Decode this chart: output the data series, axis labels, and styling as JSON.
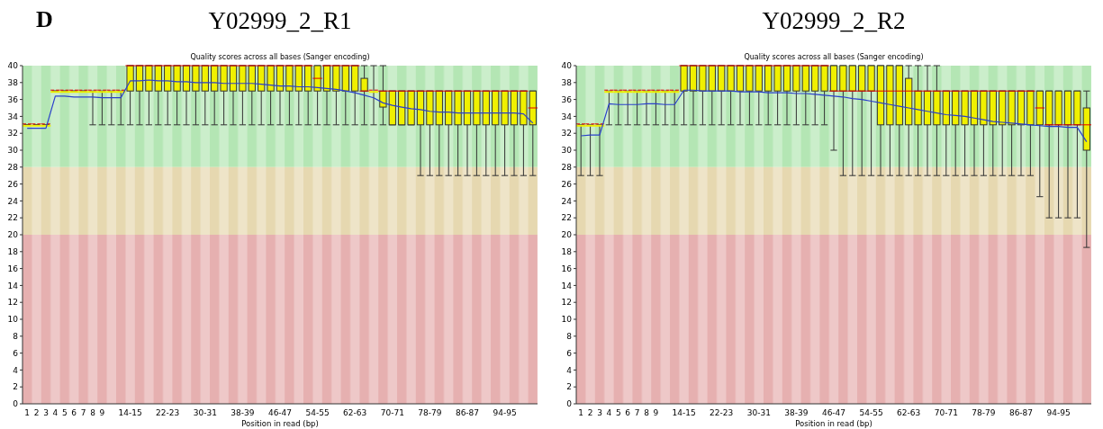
{
  "chart_data": [
    {
      "type": "box",
      "title": "Y02999_2_R1",
      "subtitle": "Quality scores across all bases (Sanger encoding)",
      "xlabel": "Position in read (bp)",
      "annotations": [
        "D"
      ],
      "categories": [
        "1",
        "2",
        "3",
        "4",
        "5",
        "6",
        "7",
        "8",
        "9",
        null,
        null,
        "14-15",
        null,
        null,
        null,
        "22-23",
        null,
        null,
        null,
        "30-31",
        null,
        null,
        null,
        "38-39",
        null,
        null,
        null,
        "46-47",
        null,
        null,
        null,
        "54-55",
        null,
        null,
        null,
        "62-63",
        null,
        null,
        null,
        "70-71",
        null,
        null,
        null,
        "78-79",
        null,
        null,
        null,
        "86-87",
        null,
        null,
        null,
        "94-95",
        null,
        null,
        null
      ],
      "ylim": [
        0,
        40
      ],
      "yticks": [
        0,
        2,
        4,
        6,
        8,
        10,
        12,
        14,
        16,
        18,
        20,
        22,
        24,
        26,
        28,
        30,
        32,
        34,
        36,
        38,
        40
      ],
      "bands": [
        {
          "axis": "y",
          "from": 28,
          "to": 40,
          "color": "#b4e6b4"
        },
        {
          "axis": "y",
          "from": 20,
          "to": 28,
          "color": "#e6d8b0"
        },
        {
          "axis": "y",
          "from": 0,
          "to": 20,
          "color": "#e6b0b0"
        }
      ],
      "series": [
        {
          "type": "box",
          "color": "#f0f000",
          "boxes": [
            {
              "low": 33,
              "q1": 33,
              "median": 33,
              "q3": 33,
              "high": 33
            },
            {
              "low": 33,
              "q1": 33,
              "median": 33,
              "q3": 33,
              "high": 33
            },
            {
              "low": 33,
              "q1": 33,
              "median": 33,
              "q3": 33,
              "high": 33
            },
            {
              "low": 37,
              "q1": 37,
              "median": 37,
              "q3": 37,
              "high": 37
            },
            {
              "low": 37,
              "q1": 37,
              "median": 37,
              "q3": 37,
              "high": 37
            },
            {
              "low": 37,
              "q1": 37,
              "median": 37,
              "q3": 37,
              "high": 37
            },
            {
              "low": 37,
              "q1": 37,
              "median": 37,
              "q3": 37,
              "high": 37
            },
            {
              "low": 33,
              "q1": 37,
              "median": 37,
              "q3": 37,
              "high": 37
            },
            {
              "low": 33,
              "q1": 37,
              "median": 37,
              "q3": 37,
              "high": 37
            },
            {
              "low": 33,
              "q1": 37,
              "median": 37,
              "q3": 37,
              "high": 37
            },
            {
              "low": 33,
              "q1": 37,
              "median": 37,
              "q3": 37,
              "high": 37
            },
            {
              "low": 33,
              "q1": 37,
              "median": 40,
              "q3": 40,
              "high": 40
            },
            {
              "low": 33,
              "q1": 37,
              "median": 40,
              "q3": 40,
              "high": 40
            },
            {
              "low": 33,
              "q1": 37,
              "median": 40,
              "q3": 40,
              "high": 40
            },
            {
              "low": 33,
              "q1": 37,
              "median": 40,
              "q3": 40,
              "high": 40
            },
            {
              "low": 33,
              "q1": 37,
              "median": 40,
              "q3": 40,
              "high": 40
            },
            {
              "low": 33,
              "q1": 37,
              "median": 40,
              "q3": 40,
              "high": 40
            },
            {
              "low": 33,
              "q1": 37,
              "median": 40,
              "q3": 40,
              "high": 40
            },
            {
              "low": 33,
              "q1": 37,
              "median": 40,
              "q3": 40,
              "high": 40
            },
            {
              "low": 33,
              "q1": 37,
              "median": 40,
              "q3": 40,
              "high": 40
            },
            {
              "low": 33,
              "q1": 37,
              "median": 40,
              "q3": 40,
              "high": 40
            },
            {
              "low": 33,
              "q1": 37,
              "median": 40,
              "q3": 40,
              "high": 40
            },
            {
              "low": 33,
              "q1": 37,
              "median": 40,
              "q3": 40,
              "high": 40
            },
            {
              "low": 33,
              "q1": 37,
              "median": 40,
              "q3": 40,
              "high": 40
            },
            {
              "low": 33,
              "q1": 37,
              "median": 40,
              "q3": 40,
              "high": 40
            },
            {
              "low": 33,
              "q1": 37,
              "median": 40,
              "q3": 40,
              "high": 40
            },
            {
              "low": 33,
              "q1": 37,
              "median": 40,
              "q3": 40,
              "high": 40
            },
            {
              "low": 33,
              "q1": 37,
              "median": 40,
              "q3": 40,
              "high": 40
            },
            {
              "low": 33,
              "q1": 37,
              "median": 40,
              "q3": 40,
              "high": 40
            },
            {
              "low": 33,
              "q1": 37,
              "median": 40,
              "q3": 40,
              "high": 40
            },
            {
              "low": 33,
              "q1": 37,
              "median": 40,
              "q3": 40,
              "high": 40
            },
            {
              "low": 33,
              "q1": 37,
              "median": 38.5,
              "q3": 40,
              "high": 40
            },
            {
              "low": 33,
              "q1": 37,
              "median": 40,
              "q3": 40,
              "high": 40
            },
            {
              "low": 33,
              "q1": 37,
              "median": 40,
              "q3": 40,
              "high": 40
            },
            {
              "low": 33,
              "q1": 37,
              "median": 40,
              "q3": 40,
              "high": 40
            },
            {
              "low": 33,
              "q1": 37,
              "median": 40,
              "q3": 40,
              "high": 40
            },
            {
              "low": 33,
              "q1": 37,
              "median": 37,
              "q3": 38.5,
              "high": 40
            },
            {
              "low": 33,
              "q1": 37,
              "median": 37,
              "q3": 37,
              "high": 40
            },
            {
              "low": 33,
              "q1": 35.1,
              "median": 37,
              "q3": 37,
              "high": 40
            },
            {
              "low": 33,
              "q1": 33,
              "median": 37,
              "q3": 37,
              "high": 37
            },
            {
              "low": 33,
              "q1": 33,
              "median": 37,
              "q3": 37,
              "high": 37
            },
            {
              "low": 33,
              "q1": 33,
              "median": 37,
              "q3": 37,
              "high": 37
            },
            {
              "low": 27,
              "q1": 33,
              "median": 37,
              "q3": 37,
              "high": 37
            },
            {
              "low": 27,
              "q1": 33,
              "median": 37,
              "q3": 37,
              "high": 37
            },
            {
              "low": 27,
              "q1": 33,
              "median": 37,
              "q3": 37,
              "high": 37
            },
            {
              "low": 27,
              "q1": 33,
              "median": 37,
              "q3": 37,
              "high": 37
            },
            {
              "low": 27,
              "q1": 33,
              "median": 37,
              "q3": 37,
              "high": 37
            },
            {
              "low": 27,
              "q1": 33,
              "median": 37,
              "q3": 37,
              "high": 37
            },
            {
              "low": 27,
              "q1": 33,
              "median": 37,
              "q3": 37,
              "high": 37
            },
            {
              "low": 27,
              "q1": 33,
              "median": 37,
              "q3": 37,
              "high": 37
            },
            {
              "low": 27,
              "q1": 33,
              "median": 37,
              "q3": 37,
              "high": 37
            },
            {
              "low": 27,
              "q1": 33,
              "median": 37,
              "q3": 37,
              "high": 37
            },
            {
              "low": 27,
              "q1": 33,
              "median": 37,
              "q3": 37,
              "high": 37
            },
            {
              "low": 27,
              "q1": 33,
              "median": 37,
              "q3": 37,
              "high": 37
            },
            {
              "low": 27,
              "q1": 33,
              "median": 35,
              "q3": 37,
              "high": 37
            }
          ]
        },
        {
          "type": "line",
          "color": "#2a3fcc",
          "values": [
            32.6,
            32.6,
            32.6,
            36.4,
            36.4,
            36.3,
            36.3,
            36.3,
            36.2,
            36.2,
            36.2,
            38.2,
            38.2,
            38.3,
            38.2,
            38.2,
            38.1,
            38.1,
            38.0,
            38.0,
            38.0,
            37.9,
            37.9,
            37.9,
            37.9,
            37.8,
            37.7,
            37.6,
            37.6,
            37.5,
            37.5,
            37.4,
            37.3,
            37.2,
            37.0,
            36.8,
            36.5,
            36.2,
            35.6,
            35.3,
            35.1,
            34.9,
            34.8,
            34.6,
            34.5,
            34.5,
            34.4,
            34.4,
            34.4,
            34.4,
            34.4,
            34.4,
            34.4,
            34.3,
            33.2
          ]
        }
      ]
    },
    {
      "type": "box",
      "title": "Y02999_2_R2",
      "subtitle": "Quality scores across all bases (Sanger encoding)",
      "xlabel": "Position in read (bp)",
      "categories": [
        "1",
        "2",
        "3",
        "4",
        "5",
        "6",
        "7",
        "8",
        "9",
        null,
        null,
        "14-15",
        null,
        null,
        null,
        "22-23",
        null,
        null,
        null,
        "30-31",
        null,
        null,
        null,
        "38-39",
        null,
        null,
        null,
        "46-47",
        null,
        null,
        null,
        "54-55",
        null,
        null,
        null,
        "62-63",
        null,
        null,
        null,
        "70-71",
        null,
        null,
        null,
        "78-79",
        null,
        null,
        null,
        "86-87",
        null,
        null,
        null,
        "94-95",
        null,
        null,
        null
      ],
      "ylim": [
        0,
        40
      ],
      "yticks": [
        0,
        2,
        4,
        6,
        8,
        10,
        12,
        14,
        16,
        18,
        20,
        22,
        24,
        26,
        28,
        30,
        32,
        34,
        36,
        38,
        40
      ],
      "bands": [
        {
          "axis": "y",
          "from": 28,
          "to": 40,
          "color": "#b4e6b4"
        },
        {
          "axis": "y",
          "from": 20,
          "to": 28,
          "color": "#e6d8b0"
        },
        {
          "axis": "y",
          "from": 0,
          "to": 20,
          "color": "#e6b0b0"
        }
      ],
      "series": [
        {
          "type": "box",
          "color": "#f0f000",
          "boxes": [
            {
              "low": 27,
              "q1": 33,
              "median": 33,
              "q3": 33,
              "high": 33
            },
            {
              "low": 27,
              "q1": 33,
              "median": 33,
              "q3": 33,
              "high": 33
            },
            {
              "low": 27,
              "q1": 33,
              "median": 33,
              "q3": 33,
              "high": 33
            },
            {
              "low": 33,
              "q1": 37,
              "median": 37,
              "q3": 37,
              "high": 37
            },
            {
              "low": 33,
              "q1": 37,
              "median": 37,
              "q3": 37,
              "high": 37
            },
            {
              "low": 33,
              "q1": 37,
              "median": 37,
              "q3": 37,
              "high": 37
            },
            {
              "low": 33,
              "q1": 37,
              "median": 37,
              "q3": 37,
              "high": 37
            },
            {
              "low": 33,
              "q1": 37,
              "median": 37,
              "q3": 37,
              "high": 37
            },
            {
              "low": 33,
              "q1": 37,
              "median": 37,
              "q3": 37,
              "high": 37
            },
            {
              "low": 33,
              "q1": 37,
              "median": 37,
              "q3": 37,
              "high": 37
            },
            {
              "low": 33,
              "q1": 37,
              "median": 37,
              "q3": 37,
              "high": 37
            },
            {
              "low": 33,
              "q1": 37,
              "median": 40,
              "q3": 40,
              "high": 40
            },
            {
              "low": 33,
              "q1": 37,
              "median": 40,
              "q3": 40,
              "high": 40
            },
            {
              "low": 33,
              "q1": 37,
              "median": 40,
              "q3": 40,
              "high": 40
            },
            {
              "low": 33,
              "q1": 37,
              "median": 40,
              "q3": 40,
              "high": 40
            },
            {
              "low": 33,
              "q1": 37,
              "median": 40,
              "q3": 40,
              "high": 40
            },
            {
              "low": 33,
              "q1": 37,
              "median": 40,
              "q3": 40,
              "high": 40
            },
            {
              "low": 33,
              "q1": 37,
              "median": 40,
              "q3": 40,
              "high": 40
            },
            {
              "low": 33,
              "q1": 37,
              "median": 40,
              "q3": 40,
              "high": 40
            },
            {
              "low": 33,
              "q1": 37,
              "median": 40,
              "q3": 40,
              "high": 40
            },
            {
              "low": 33,
              "q1": 37,
              "median": 40,
              "q3": 40,
              "high": 40
            },
            {
              "low": 33,
              "q1": 37,
              "median": 40,
              "q3": 40,
              "high": 40
            },
            {
              "low": 33,
              "q1": 37,
              "median": 40,
              "q3": 40,
              "high": 40
            },
            {
              "low": 33,
              "q1": 37,
              "median": 40,
              "q3": 40,
              "high": 40
            },
            {
              "low": 33,
              "q1": 37,
              "median": 40,
              "q3": 40,
              "high": 40
            },
            {
              "low": 33,
              "q1": 37,
              "median": 40,
              "q3": 40,
              "high": 40
            },
            {
              "low": 33,
              "q1": 37,
              "median": 40,
              "q3": 40,
              "high": 40
            },
            {
              "low": 30,
              "q1": 37,
              "median": 37,
              "q3": 40,
              "high": 40
            },
            {
              "low": 27,
              "q1": 37,
              "median": 37,
              "q3": 40,
              "high": 40
            },
            {
              "low": 27,
              "q1": 37,
              "median": 37,
              "q3": 40,
              "high": 40
            },
            {
              "low": 27,
              "q1": 37,
              "median": 37,
              "q3": 40,
              "high": 40
            },
            {
              "low": 27,
              "q1": 37,
              "median": 37,
              "q3": 40,
              "high": 40
            },
            {
              "low": 27,
              "q1": 33,
              "median": 37,
              "q3": 40,
              "high": 40
            },
            {
              "low": 27,
              "q1": 33,
              "median": 37,
              "q3": 40,
              "high": 40
            },
            {
              "low": 27,
              "q1": 33,
              "median": 37,
              "q3": 40,
              "high": 40
            },
            {
              "low": 27,
              "q1": 33,
              "median": 37,
              "q3": 38.5,
              "high": 40
            },
            {
              "low": 27,
              "q1": 33,
              "median": 37,
              "q3": 37,
              "high": 40
            },
            {
              "low": 27,
              "q1": 33,
              "median": 37,
              "q3": 37,
              "high": 40
            },
            {
              "low": 27,
              "q1": 33,
              "median": 37,
              "q3": 37,
              "high": 40
            },
            {
              "low": 27,
              "q1": 33,
              "median": 37,
              "q3": 37,
              "high": 37
            },
            {
              "low": 27,
              "q1": 33,
              "median": 37,
              "q3": 37,
              "high": 37
            },
            {
              "low": 27,
              "q1": 33,
              "median": 37,
              "q3": 37,
              "high": 37
            },
            {
              "low": 27,
              "q1": 33,
              "median": 37,
              "q3": 37,
              "high": 37
            },
            {
              "low": 27,
              "q1": 33,
              "median": 37,
              "q3": 37,
              "high": 37
            },
            {
              "low": 27,
              "q1": 33,
              "median": 37,
              "q3": 37,
              "high": 37
            },
            {
              "low": 27,
              "q1": 33,
              "median": 37,
              "q3": 37,
              "high": 37
            },
            {
              "low": 27,
              "q1": 33,
              "median": 37,
              "q3": 37,
              "high": 37
            },
            {
              "low": 27,
              "q1": 33,
              "median": 37,
              "q3": 37,
              "high": 37
            },
            {
              "low": 27,
              "q1": 33,
              "median": 37,
              "q3": 37,
              "high": 37
            },
            {
              "low": 24.5,
              "q1": 33,
              "median": 35,
              "q3": 37,
              "high": 37
            },
            {
              "low": 22,
              "q1": 33,
              "median": 33,
              "q3": 37,
              "high": 37
            },
            {
              "low": 22,
              "q1": 33,
              "median": 33,
              "q3": 37,
              "high": 37
            },
            {
              "low": 22,
              "q1": 33,
              "median": 33,
              "q3": 37,
              "high": 37
            },
            {
              "low": 22,
              "q1": 33,
              "median": 33,
              "q3": 37,
              "high": 37
            },
            {
              "low": 18.5,
              "q1": 30,
              "median": 33,
              "q3": 35,
              "high": 37
            }
          ]
        },
        {
          "type": "line",
          "color": "#2a3fcc",
          "values": [
            31.7,
            31.8,
            31.8,
            35.5,
            35.4,
            35.4,
            35.4,
            35.5,
            35.5,
            35.4,
            35.4,
            37.1,
            37.1,
            37.0,
            37.0,
            37.0,
            37.0,
            36.9,
            36.9,
            36.9,
            36.8,
            36.8,
            36.8,
            36.7,
            36.7,
            36.6,
            36.5,
            36.4,
            36.3,
            36.1,
            36.0,
            35.8,
            35.6,
            35.4,
            35.2,
            35.0,
            34.8,
            34.6,
            34.4,
            34.2,
            34.1,
            34.0,
            33.8,
            33.6,
            33.4,
            33.3,
            33.2,
            33.1,
            33.0,
            32.9,
            32.8,
            32.8,
            32.7,
            32.7,
            31.0
          ]
        }
      ]
    }
  ]
}
